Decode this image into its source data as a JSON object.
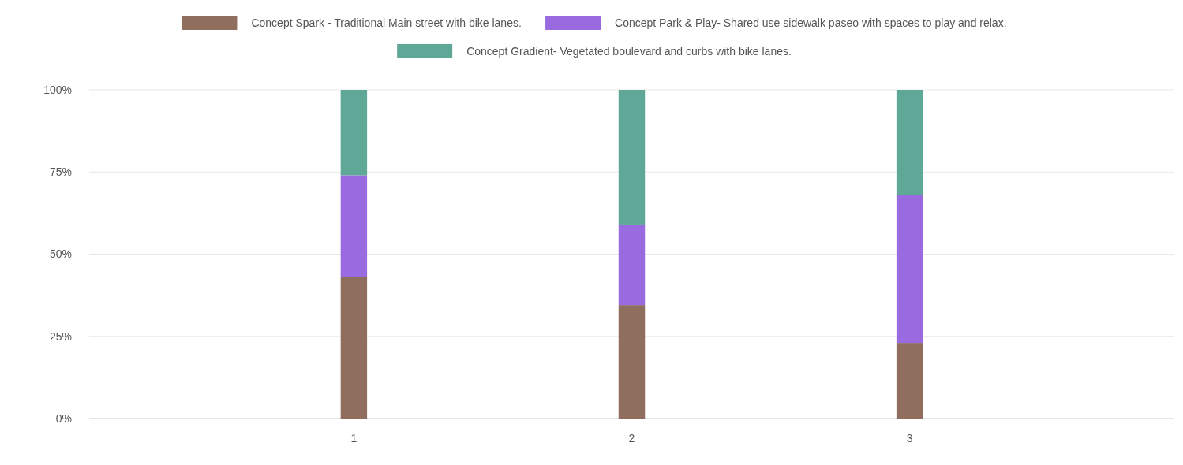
{
  "chart_data": {
    "type": "bar",
    "stacked": true,
    "categories": [
      "1",
      "2",
      "3"
    ],
    "series": [
      {
        "name": "Concept Spark - Traditional Main street with bike lanes.",
        "color": "#8f6e5e",
        "values": [
          43,
          34.5,
          23
        ]
      },
      {
        "name": "Concept Park & Play- Shared use sidewalk paseo with spaces to play and relax.",
        "color": "#9a6be0",
        "values": [
          31,
          24.5,
          45
        ]
      },
      {
        "name": "Concept Gradient- Vegetated boulevard and curbs with bike lanes.",
        "color": "#5fa898",
        "values": [
          26,
          41,
          32
        ]
      }
    ],
    "ylim": [
      0,
      100
    ],
    "yticks": [
      {
        "value": 0,
        "label": "0%"
      },
      {
        "value": 25,
        "label": "25%"
      },
      {
        "value": 50,
        "label": "50%"
      },
      {
        "value": 75,
        "label": "75%"
      },
      {
        "value": 100,
        "label": "100%"
      }
    ],
    "grid": "y",
    "legend": "top"
  }
}
